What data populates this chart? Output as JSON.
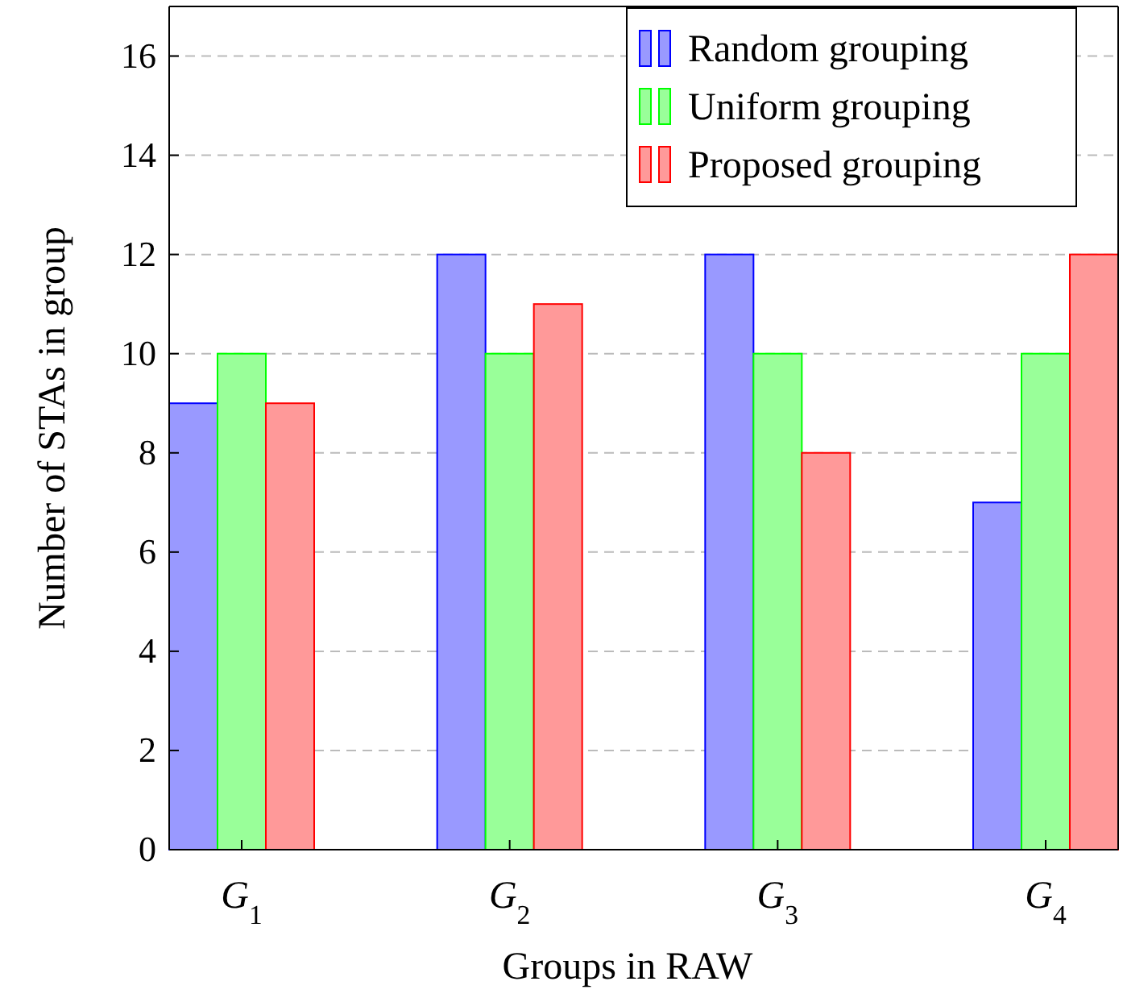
{
  "chart_data": {
    "type": "bar",
    "xlabel": "Groups in RAW",
    "ylabel": "Number of STAs in group",
    "categories": [
      "G$_{1}$",
      "G$_{2}$",
      "G$_{3}$",
      "G$_{4}$"
    ],
    "series": [
      {
        "name": "Random grouping",
        "color": "#9999ff",
        "values": [
          9,
          12,
          12,
          7
        ]
      },
      {
        "name": "Uniform grouping",
        "color": "#99ff99",
        "values": [
          10,
          10,
          10,
          10
        ]
      },
      {
        "name": "Proposed grouping",
        "color": "#ff9999",
        "values": [
          9,
          11,
          8,
          12
        ]
      }
    ],
    "ylim": [
      0,
      17
    ],
    "yticks": [
      0,
      2,
      4,
      6,
      8,
      10,
      12,
      14,
      16
    ],
    "grid": "y",
    "legend": "top right"
  }
}
